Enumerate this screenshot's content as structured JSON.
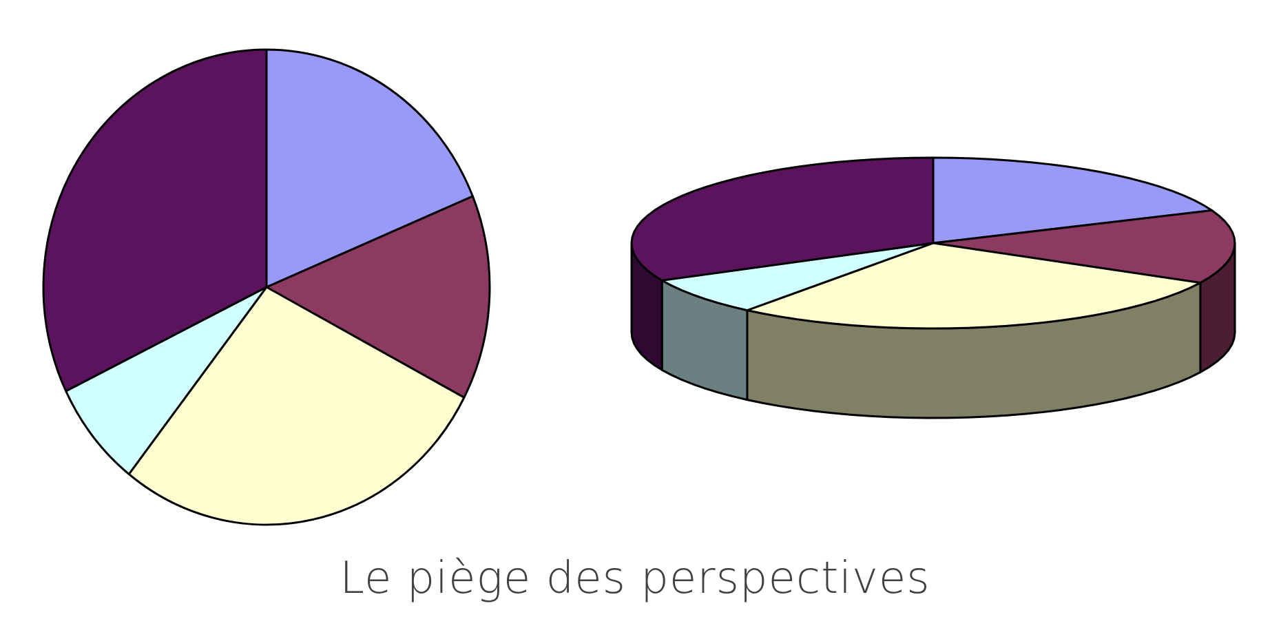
{
  "caption": "Le piège des perspectives",
  "chart_data": [
    {
      "type": "pie",
      "view": "2d",
      "slices": [
        {
          "value": 19.5,
          "color": "#9999f8"
        },
        {
          "value": 14.5,
          "color": "#8c3a62"
        },
        {
          "value": 29.0,
          "color": "#ffffd2"
        },
        {
          "value": 7.5,
          "color": "#d2ffff"
        },
        {
          "value": 33.5,
          "color": "#5c135d"
        }
      ]
    },
    {
      "type": "pie",
      "view": "3d",
      "slices": [
        {
          "value": 19.5,
          "color": "#9999f8",
          "side_color": "#6b6baf"
        },
        {
          "value": 14.5,
          "color": "#8c3a62",
          "side_color": "#4b1e33"
        },
        {
          "value": 29.0,
          "color": "#ffffd2",
          "side_color": "#808066"
        },
        {
          "value": 7.5,
          "color": "#d2ffff",
          "side_color": "#6b8080"
        },
        {
          "value": 33.5,
          "color": "#5c135d",
          "side_color": "#2e0931"
        }
      ]
    }
  ]
}
